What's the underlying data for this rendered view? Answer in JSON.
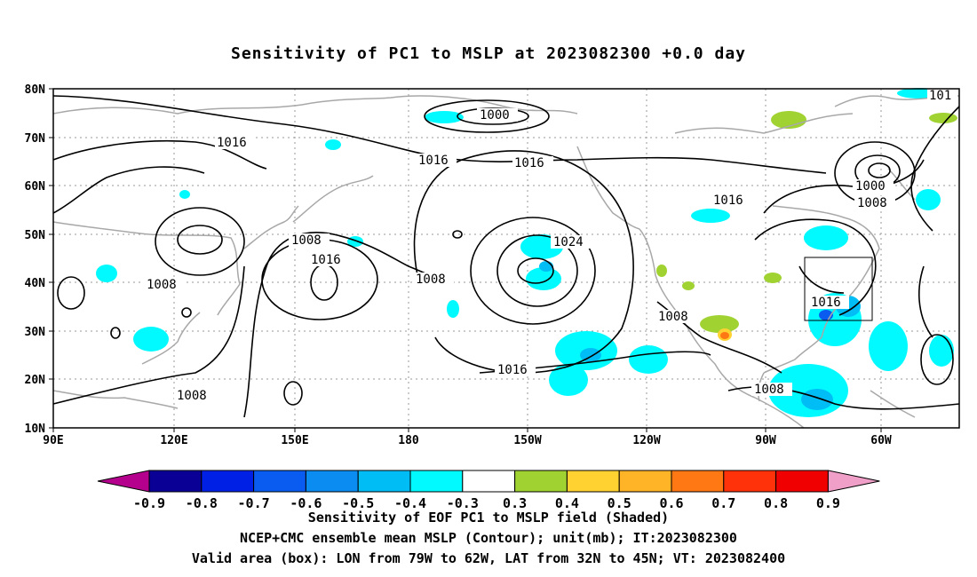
{
  "title": "Sensitivity of PC1 to MSLP at 2023082300 +0.0 day",
  "axes": {
    "lat_labels": [
      "80N",
      "70N",
      "60N",
      "50N",
      "40N",
      "30N",
      "20N",
      "10N"
    ],
    "lon_labels": [
      "90E",
      "120E",
      "150E",
      "180",
      "150W",
      "120W",
      "90W",
      "60W"
    ]
  },
  "contour_labels": [
    "1000",
    "1016",
    "1016",
    "1016",
    "1008",
    "1016",
    "1008",
    "1024",
    "1016",
    "1008",
    "1008",
    "1016",
    "1008",
    "1016",
    "1008",
    "1000",
    "1008",
    "101"
  ],
  "colorbar": {
    "labels": [
      "-0.9",
      "-0.8",
      "-0.7",
      "-0.6",
      "-0.5",
      "-0.4",
      "-0.3",
      "0.3",
      "0.4",
      "0.5",
      "0.6",
      "0.7",
      "0.8",
      "0.9"
    ],
    "colors": [
      "#b4008c",
      "#0a0096",
      "#0020e6",
      "#0a5cf0",
      "#0a8cf0",
      "#00bef5",
      "#00faff",
      "#ffffff",
      "#a0d232",
      "#ffd232",
      "#ffb428",
      "#ff7814",
      "#ff320a",
      "#f00000",
      "#f0a0c8"
    ]
  },
  "captions": {
    "line1": "Sensitivity of EOF PC1 to MSLP field (Shaded)",
    "line2": "NCEP+CMC ensemble mean MSLP (Contour); unit(mb); IT:2023082300",
    "line3": "Valid area (box): LON from 79W to 62W, LAT from 32N to 45N; VT: 2023082400"
  }
}
